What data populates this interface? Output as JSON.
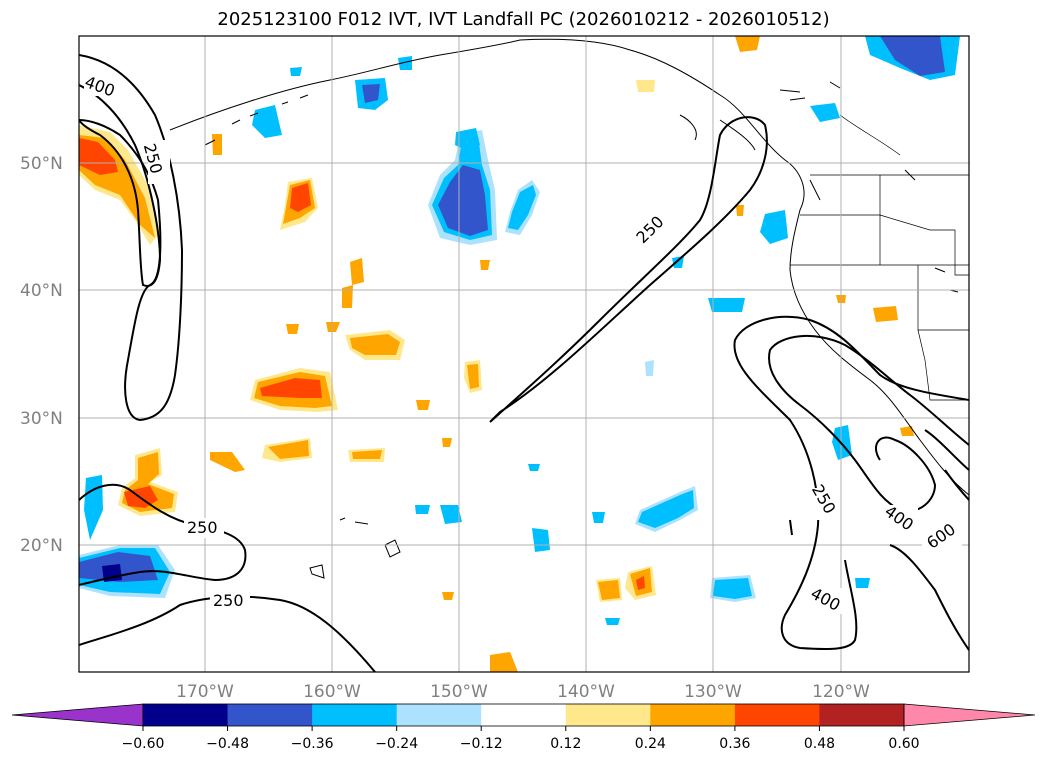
{
  "title": "2025123100 F012 IVT, IVT Landfall PC (2026010212 - 2026010512)",
  "lat_labels": [
    "50°N",
    "40°N",
    "30°N",
    "20°N"
  ],
  "lon_labels": [
    "170°W",
    "160°W",
    "150°W",
    "140°W",
    "130°W",
    "120°W"
  ],
  "contour_labels": [
    "400",
    "250",
    "250",
    "250",
    "250",
    "250",
    "400",
    "600",
    "400"
  ],
  "colorbar": {
    "colors": [
      "#9933CC",
      "#00008B",
      "#3355CC",
      "#00BFFF",
      "#ADE2FF",
      "#FFFFFF",
      "#FFE88C",
      "#FFA500",
      "#FF4500",
      "#B22222",
      "#FF88AA"
    ],
    "tick_labels": [
      "−0.60",
      "−0.48",
      "−0.36",
      "−0.24",
      "−0.12",
      "0.12",
      "0.24",
      "0.36",
      "0.48",
      "0.60"
    ]
  },
  "colors": {
    "light_blue": "#ADE2FF",
    "blue": "#00BFFF",
    "dark_blue": "#3355CC",
    "navy": "#00008B",
    "yellow": "#FFE88C",
    "orange": "#FFA500",
    "red_orange": "#FF4500"
  }
}
